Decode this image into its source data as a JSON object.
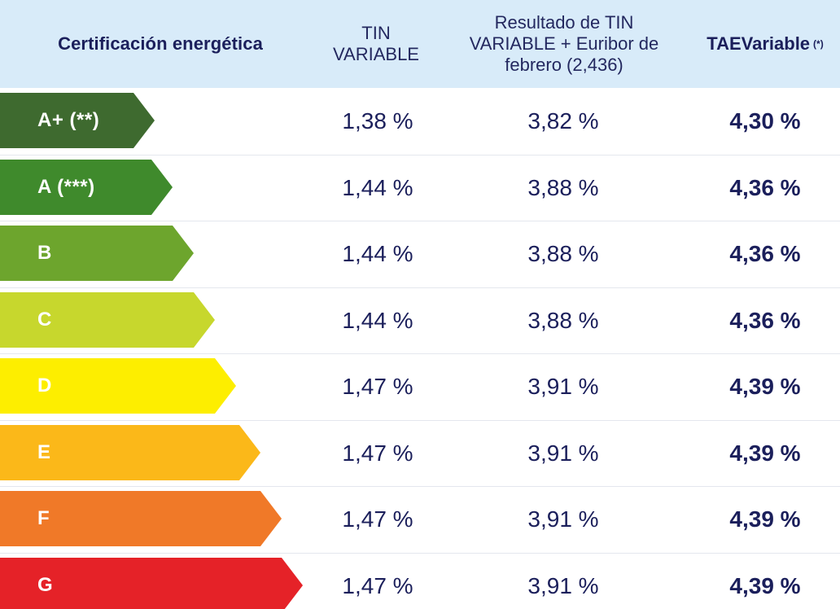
{
  "header": {
    "certificacion": "Certificación energética",
    "tin_line1": "TIN",
    "tin_line2": "VARIABLE",
    "resultado_line1": "Resultado de TIN",
    "resultado_line2": "VARIABLE + Euribor de",
    "resultado_line3": "febrero (2,436)",
    "tae": "TAEVariable",
    "tae_note": "(*)"
  },
  "rows": [
    {
      "label": "A+ (**)",
      "tin": "1,38 %",
      "resultado": "3,82 %",
      "tae": "4,30 %",
      "color": "#3e6a2f"
    },
    {
      "label": "A (***)",
      "tin": "1,44 %",
      "resultado": "3,88 %",
      "tae": "4,36 %",
      "color": "#3f8a2c"
    },
    {
      "label": "B",
      "tin": "1,44 %",
      "resultado": "3,88 %",
      "tae": "4,36 %",
      "color": "#6da52d"
    },
    {
      "label": "C",
      "tin": "1,44 %",
      "resultado": "3,88 %",
      "tae": "4,36 %",
      "color": "#c7d72d"
    },
    {
      "label": "D",
      "tin": "1,47 %",
      "resultado": "3,91 %",
      "tae": "4,39 %",
      "color": "#fdee00"
    },
    {
      "label": "E",
      "tin": "1,47 %",
      "resultado": "3,91 %",
      "tae": "4,39 %",
      "color": "#fbb819"
    },
    {
      "label": "F",
      "tin": "1,47 %",
      "resultado": "3,91 %",
      "tae": "4,39 %",
      "color": "#f07928"
    },
    {
      "label": "G",
      "tin": "1,47 %",
      "resultado": "3,91 %",
      "tae": "4,39 %",
      "color": "#e52228"
    }
  ]
}
